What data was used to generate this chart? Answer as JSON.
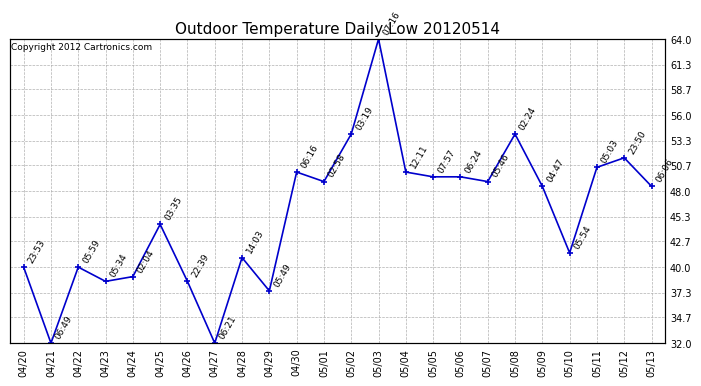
{
  "title": "Outdoor Temperature Daily Low 20120514",
  "copyright": "Copyright 2012 Cartronics.com",
  "x_labels": [
    "04/20",
    "04/21",
    "04/22",
    "04/23",
    "04/24",
    "04/25",
    "04/26",
    "04/27",
    "04/28",
    "04/29",
    "04/30",
    "05/01",
    "05/02",
    "05/03",
    "05/04",
    "05/05",
    "05/06",
    "05/07",
    "05/08",
    "05/09",
    "05/10",
    "05/11",
    "05/12",
    "05/13"
  ],
  "y_values": [
    40.0,
    32.0,
    40.0,
    38.5,
    39.0,
    44.5,
    38.5,
    32.0,
    41.0,
    37.5,
    50.0,
    49.0,
    54.0,
    64.0,
    50.0,
    49.5,
    49.5,
    49.0,
    54.0,
    48.5,
    41.5,
    50.5,
    51.5,
    48.5
  ],
  "point_labels": [
    "23:53",
    "06:49",
    "05:59",
    "05:34",
    "02:04",
    "03:35",
    "22:39",
    "06:21",
    "14:03",
    "05:49",
    "06:16",
    "02:58",
    "03:19",
    "07:16",
    "12:11",
    "07:57",
    "06:24",
    "05:46",
    "02:24",
    "04:47",
    "05:54",
    "05:03",
    "23:50",
    "06:06"
  ],
  "y_min": 32.0,
  "y_max": 64.0,
  "y_ticks": [
    32.0,
    34.7,
    37.3,
    40.0,
    42.7,
    45.3,
    48.0,
    50.7,
    53.3,
    56.0,
    58.7,
    61.3,
    64.0
  ],
  "line_color": "#0000CC",
  "marker_color": "#0000CC",
  "bg_color": "#FFFFFF",
  "grid_color": "#B0B0B0",
  "title_fontsize": 11,
  "label_fontsize": 7,
  "annotation_fontsize": 6.5,
  "copyright_fontsize": 6.5
}
